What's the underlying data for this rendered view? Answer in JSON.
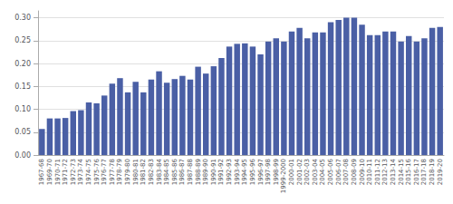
{
  "chart_data": {
    "type": "bar",
    "categories": [
      "1967-68",
      "1969-70",
      "1970-71",
      "1971-72",
      "1972-73",
      "1973-74",
      "1974-75",
      "1975-76",
      "1976-77",
      "1977-78",
      "1978-79",
      "1979-80",
      "1980-81",
      "1981-82",
      "1982-83",
      "1983-84",
      "1984-85",
      "1985-86",
      "1986-87",
      "1987-88",
      "1988-89",
      "1989-90",
      "1990-91",
      "1991-92",
      "1992-93",
      "1993-94",
      "1994-95",
      "1995-96",
      "1996-97",
      "1997-98",
      "1998-99",
      "1999-2000",
      "2000-01",
      "2001-02",
      "2002-03",
      "2003-04",
      "2004-05",
      "2005-06",
      "2006-07",
      "2007-08",
      "2008-09",
      "2009-10",
      "2010-11",
      "2011-12",
      "2012-13",
      "2013-14",
      "2014-15",
      "2015-16",
      "2016-17",
      "2017-18",
      "2018-19",
      "2019-20"
    ],
    "values": [
      0.057,
      0.08,
      0.08,
      0.081,
      0.096,
      0.098,
      0.115,
      0.113,
      0.13,
      0.156,
      0.168,
      0.137,
      0.16,
      0.137,
      0.165,
      0.183,
      0.158,
      0.166,
      0.173,
      0.165,
      0.193,
      0.178,
      0.194,
      0.212,
      0.237,
      0.243,
      0.244,
      0.237,
      0.22,
      0.248,
      0.255,
      0.248,
      0.27,
      0.278,
      0.255,
      0.268,
      0.268,
      0.29,
      0.295,
      0.3,
      0.3,
      0.285,
      0.262,
      0.262,
      0.27,
      0.27,
      0.248,
      0.26,
      0.248,
      0.255,
      0.278,
      0.28
    ],
    "color": "#4a5fa5",
    "ylim": [
      0,
      0.315
    ],
    "yticks": [
      {
        "value": 0,
        "label": "0.00"
      },
      0.05,
      {
        "value": 0.1,
        "label": "0.10"
      },
      0.15,
      {
        "value": 0.2,
        "label": "0.20"
      },
      0.25,
      {
        "value": 0.3,
        "label": "0.30"
      }
    ],
    "grid": true
  }
}
